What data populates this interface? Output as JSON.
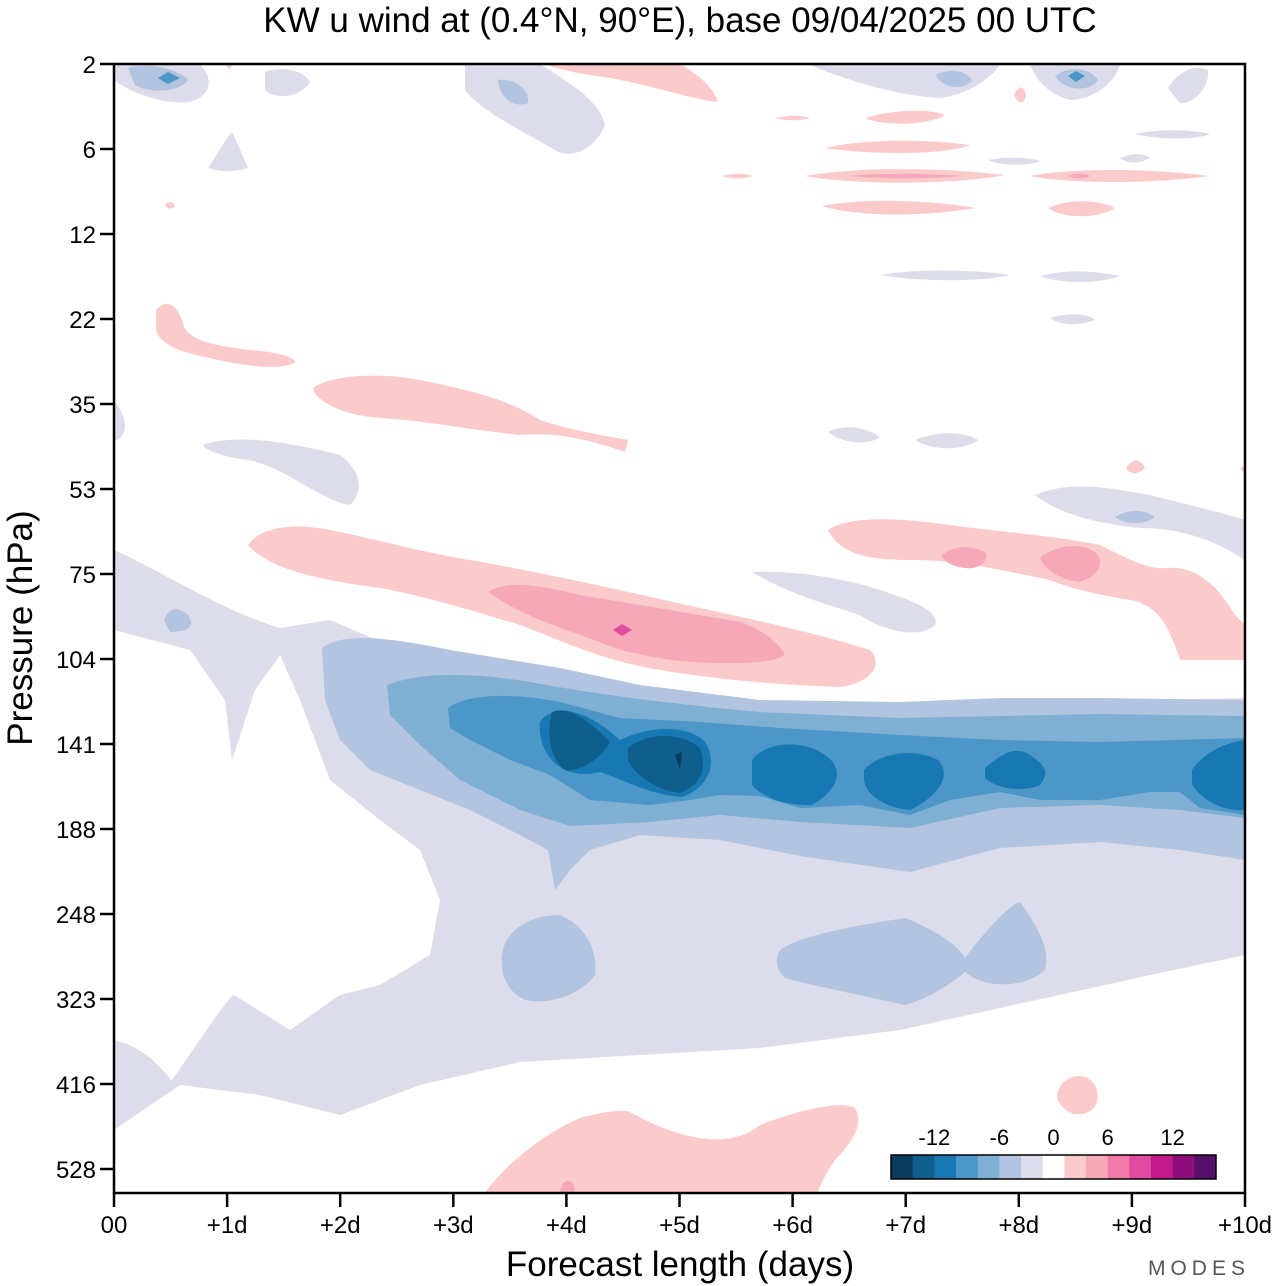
{
  "chart_data": {
    "type": "heatmap",
    "title": "KW u wind at (0.4°N, 90°E),  base 09/04/2025  00 UTC",
    "xlabel": "Forecast length (days)",
    "ylabel": "Pressure (hPa)",
    "x_ticks": [
      "00",
      "+1d",
      "+2d",
      "+3d",
      "+4d",
      "+5d",
      "+6d",
      "+7d",
      "+8d",
      "+9d",
      "+10d"
    ],
    "xlim": [
      0,
      10
    ],
    "y_ticks": [
      2,
      6,
      12,
      22,
      35,
      53,
      75,
      104,
      141,
      188,
      248,
      323,
      416,
      528
    ],
    "y_scale": "log (inverted)",
    "colorbar": {
      "ticks": [
        "-12",
        "-6",
        "0",
        "6",
        "12"
      ],
      "levels": [
        -16,
        -14,
        -12,
        -10,
        -8,
        -6,
        -4,
        -2,
        2,
        4,
        6,
        8,
        10,
        12,
        14,
        16
      ],
      "colors": [
        "#0b3c5d",
        "#0f5e8c",
        "#1878b4",
        "#4c97c7",
        "#7fb0d4",
        "#b2c4df",
        "#dcdceb",
        "#ffffff",
        "#fbcbcb",
        "#f7a8b8",
        "#f07aa8",
        "#e04aa0",
        "#c21a8a",
        "#8e0e7d",
        "#55106e"
      ],
      "placement": "bottom-right"
    },
    "features": [
      {
        "kind": "easterly",
        "max_speed": -16,
        "x": 4.6,
        "pressure": 141
      },
      {
        "kind": "easterly",
        "max_speed": -12,
        "x": 6.0,
        "pressure": 150
      },
      {
        "kind": "easterly",
        "max_speed": -12,
        "x": 7.0,
        "pressure": 150
      },
      {
        "kind": "westerly",
        "max_speed": 10,
        "x": 4.5,
        "pressure": 90
      },
      {
        "kind": "westerly",
        "max_speed": 4,
        "x": 5.0,
        "pressure": 500
      }
    ],
    "brand": "MODES"
  }
}
